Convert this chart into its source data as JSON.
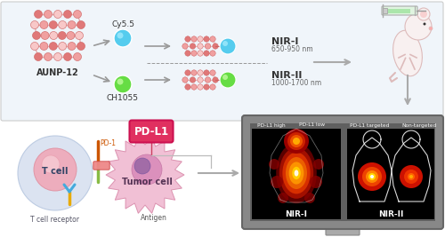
{
  "bg_color": "#ffffff",
  "top_box_bg": "#f0f5fa",
  "aunp_label": "AUNP-12",
  "cy55_label": "Cy5.5",
  "ch1055_label": "CH1055",
  "nir1_label": "NIR-I",
  "nir1_range": "650-950 nm",
  "nir2_label": "NIR-II",
  "nir2_range": "1000-1700 nm",
  "pdl1_label": "PD-L1",
  "pd1_label": "PD-1",
  "tcell_label": "T cell",
  "tumor_label": "Tumor cell",
  "tcell_receptor_label": "T cell receptor",
  "antigen_label": "Antigen",
  "nir1_img_label": "NIR-I",
  "nir2_img_label": "NIR-II",
  "pd_l1_high": "PD-L1 high",
  "pd_l1_low": "PD-L1 low",
  "pd_l1_targeted": "PD-L1 targeted",
  "non_targeted": "Non-targeted",
  "probe_pink": "#e07878",
  "probe_mid_pink": "#f0a0a0",
  "probe_light_pink": "#f8c8c8",
  "cy55_color": "#55ccee",
  "ch1055_color": "#66dd44",
  "arrow_gray": "#aaaaaa",
  "pdl1_box_color": "#e03060",
  "tcell_outer": "#d8e0f0",
  "tcell_inner": "#f0a8b8",
  "tumor_outer": "#f0b8d0",
  "tumor_mid": "#d888b8",
  "tumor_dark": "#9060a0",
  "screen_frame": "#888888",
  "screen_inner": "#606060"
}
